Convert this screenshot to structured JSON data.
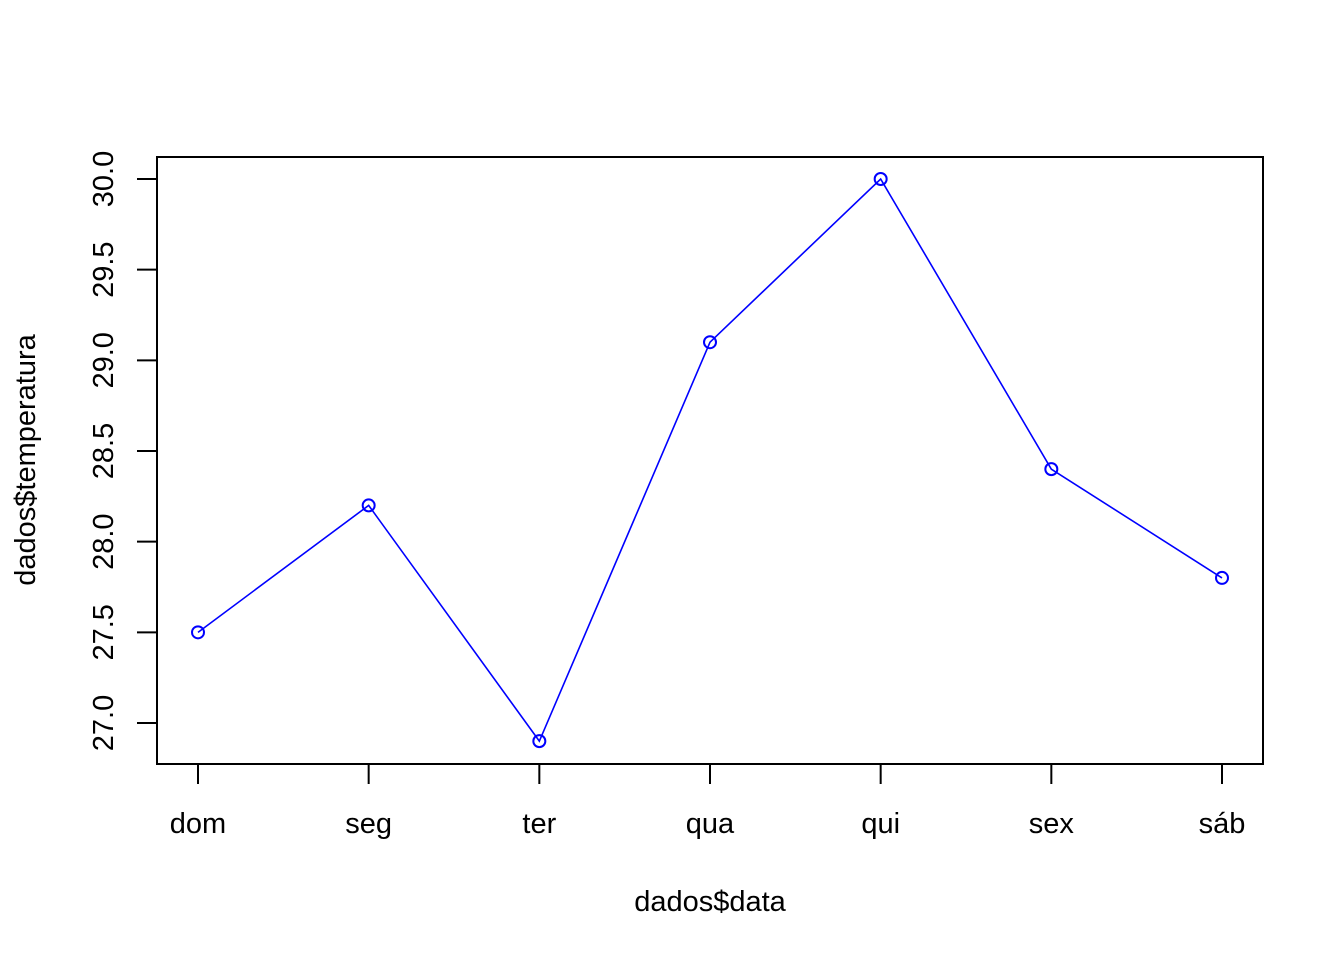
{
  "chart_data": {
    "type": "line",
    "categories": [
      "dom",
      "seg",
      "ter",
      "qua",
      "qui",
      "sex",
      "sáb"
    ],
    "series": [
      {
        "values": [
          27.5,
          28.2,
          26.9,
          29.1,
          30.0,
          28.4,
          27.8
        ],
        "color": "#0000ff",
        "marker": "open-circle"
      }
    ],
    "xlabel": "dados$data",
    "ylabel": "dados$temperatura",
    "yticks": [
      "27.0",
      "27.5",
      "28.0",
      "28.5",
      "29.0",
      "29.5",
      "30.0"
    ],
    "ylim": [
      26.9,
      30.0
    ],
    "grid": false
  }
}
